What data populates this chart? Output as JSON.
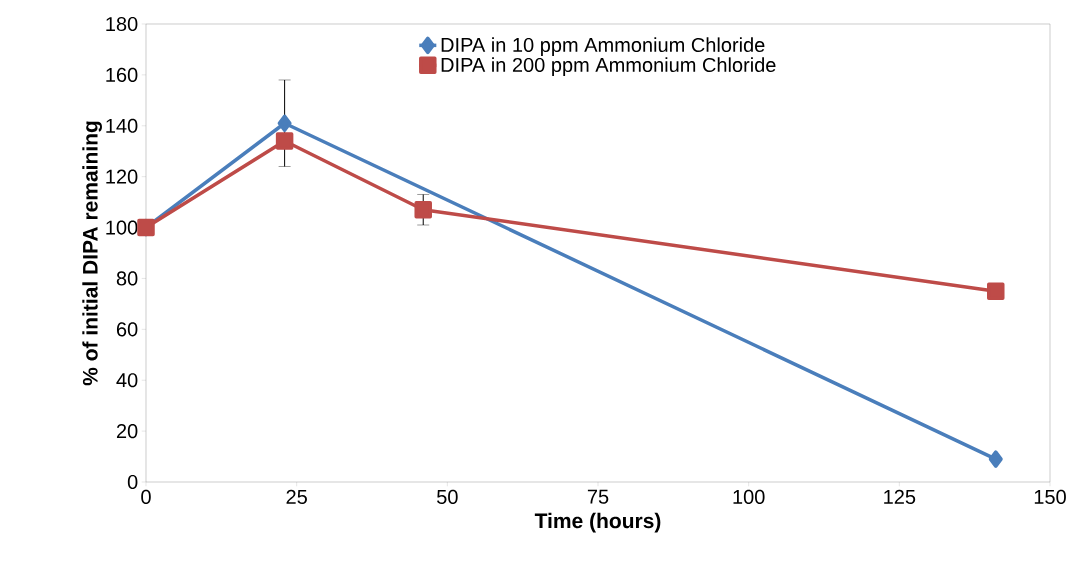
{
  "chart_data": {
    "type": "line",
    "xlabel": "Time (hours)",
    "ylabel": "% of initial DIPA remaining",
    "xlim": [
      0,
      150
    ],
    "xticks": [
      0,
      25,
      50,
      75,
      100,
      125,
      150
    ],
    "ylim": [
      0,
      180
    ],
    "yticks": [
      0,
      20,
      40,
      60,
      80,
      100,
      120,
      140,
      160,
      180
    ],
    "grid": false,
    "legend": "top",
    "series": [
      {
        "name": "DIPA in 10 ppm Ammonium Chloride",
        "color": "#4a7ebb",
        "marker": "diamond",
        "x": [
          0,
          23,
          141
        ],
        "values": [
          100,
          141,
          9
        ],
        "errors": [
          null,
          17,
          null
        ]
      },
      {
        "name": "DIPA in 200 ppm Ammonium Chloride",
        "color": "#be4b48",
        "marker": "square",
        "x": [
          0,
          23,
          46,
          141
        ],
        "values": [
          100,
          134,
          107,
          75
        ],
        "errors": [
          null,
          null,
          6,
          null
        ]
      }
    ]
  }
}
